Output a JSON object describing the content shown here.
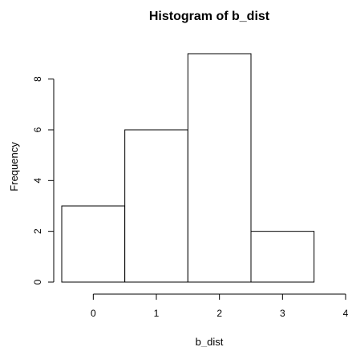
{
  "chart_data": {
    "type": "bar",
    "title": "Histogram of b_dist",
    "xlabel": "b_dist",
    "ylabel": "Frequency",
    "bins": [
      {
        "from": -0.5,
        "to": 0.5,
        "value": 3
      },
      {
        "from": 0.5,
        "to": 1.5,
        "value": 6
      },
      {
        "from": 1.5,
        "to": 2.5,
        "value": 9
      },
      {
        "from": 2.5,
        "to": 3.5,
        "value": 2
      }
    ],
    "xlim": [
      -0.5,
      4
    ],
    "ylim": [
      0,
      9
    ],
    "x_ticks": [
      "0",
      "1",
      "2",
      "3",
      "4"
    ],
    "y_ticks": [
      "0",
      "2",
      "4",
      "6",
      "8"
    ],
    "grid": false,
    "colors": {
      "bar_fill": "#ffffff",
      "bar_stroke": "#000000"
    }
  }
}
